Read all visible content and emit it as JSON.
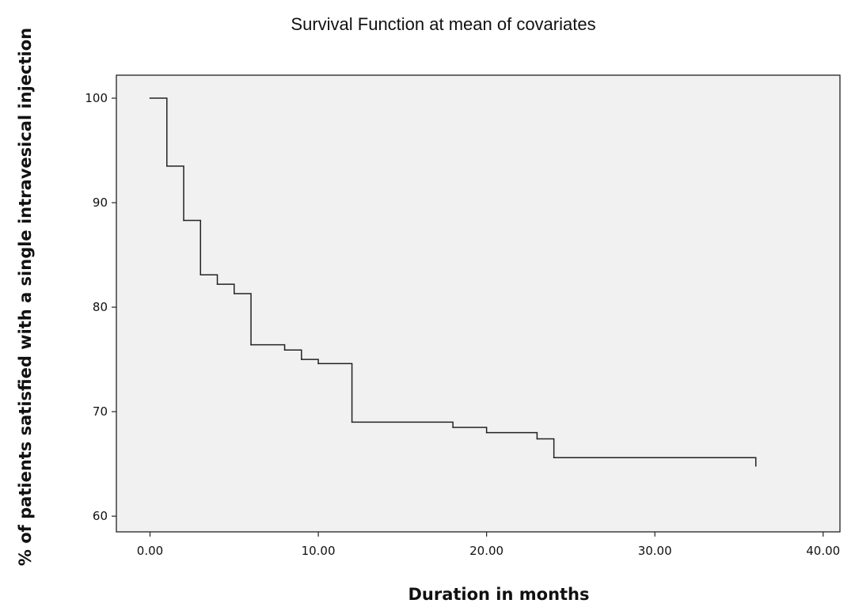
{
  "chart_data": {
    "type": "line",
    "title": "Survival Function at mean of covariates",
    "xlabel": "Duration in months",
    "ylabel": "% of patients satisfied with a single intravesical injection",
    "xlim": [
      -2,
      41
    ],
    "ylim": [
      58.5,
      102.2
    ],
    "x_ticks": [
      0,
      10,
      20,
      30,
      40
    ],
    "x_tick_labels": [
      "0.00",
      "10.00",
      "20.00",
      "30.00",
      "40.00"
    ],
    "y_ticks": [
      60,
      70,
      80,
      90,
      100
    ],
    "y_tick_labels": [
      "60",
      "70",
      "80",
      "90",
      "100"
    ],
    "grid": false,
    "legend": "none",
    "colors": {
      "plot_background": "#f1f1f1",
      "line": "#222222",
      "frame": "#222222"
    },
    "series": [
      {
        "step": true,
        "x": [
          0,
          1,
          2,
          3,
          4,
          5,
          6,
          8,
          9,
          10,
          12,
          18,
          20,
          23,
          24,
          36
        ],
        "y": [
          100,
          93.5,
          88.3,
          83.1,
          82.2,
          81.3,
          76.4,
          75.9,
          75.0,
          74.6,
          69.0,
          68.5,
          68.0,
          67.4,
          65.6,
          64.8
        ]
      }
    ]
  }
}
